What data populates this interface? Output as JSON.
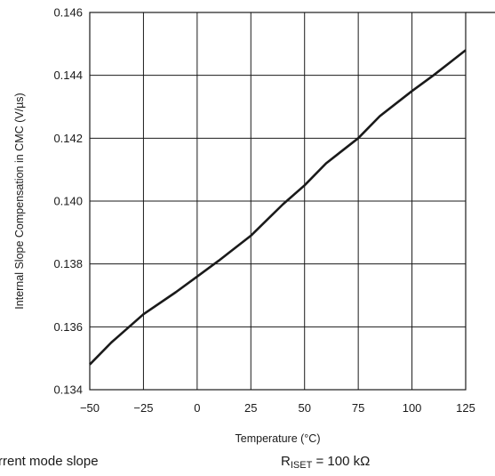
{
  "chart_data": {
    "type": "line",
    "title": "",
    "xlabel": "Temperature (°C)",
    "ylabel": "Internal Slope Compensation in CMC (V/µs)",
    "xlim": [
      -50,
      125
    ],
    "ylim": [
      0.134,
      0.146
    ],
    "x_ticks": [
      -50,
      -25,
      0,
      25,
      50,
      75,
      100,
      125
    ],
    "x_tick_labels": [
      "−50",
      "−25",
      "0",
      "25",
      "50",
      "75",
      "100",
      "125"
    ],
    "y_ticks": [
      0.134,
      0.136,
      0.138,
      0.14,
      0.142,
      0.144,
      0.146
    ],
    "y_tick_labels": [
      "0.134",
      "0.136",
      "0.138",
      "0.140",
      "0.142",
      "0.144",
      "0.146"
    ],
    "grid": true,
    "series": [
      {
        "color": "#1a1a1a",
        "x": [
          -50,
          -40,
          -25,
          -10,
          0,
          10,
          25,
          40,
          50,
          60,
          75,
          85,
          100,
          110,
          125
        ],
        "y": [
          0.1348,
          0.1355,
          0.1364,
          0.1371,
          0.1376,
          0.1381,
          0.1389,
          0.1399,
          0.1405,
          0.1412,
          0.142,
          0.1427,
          0.1435,
          0.144,
          0.1448
        ]
      }
    ]
  },
  "caption": {
    "left_text": "rrent mode slope",
    "right_symbol": "R",
    "right_subscript": "ISET",
    "right_value": " = 100 kΩ"
  }
}
